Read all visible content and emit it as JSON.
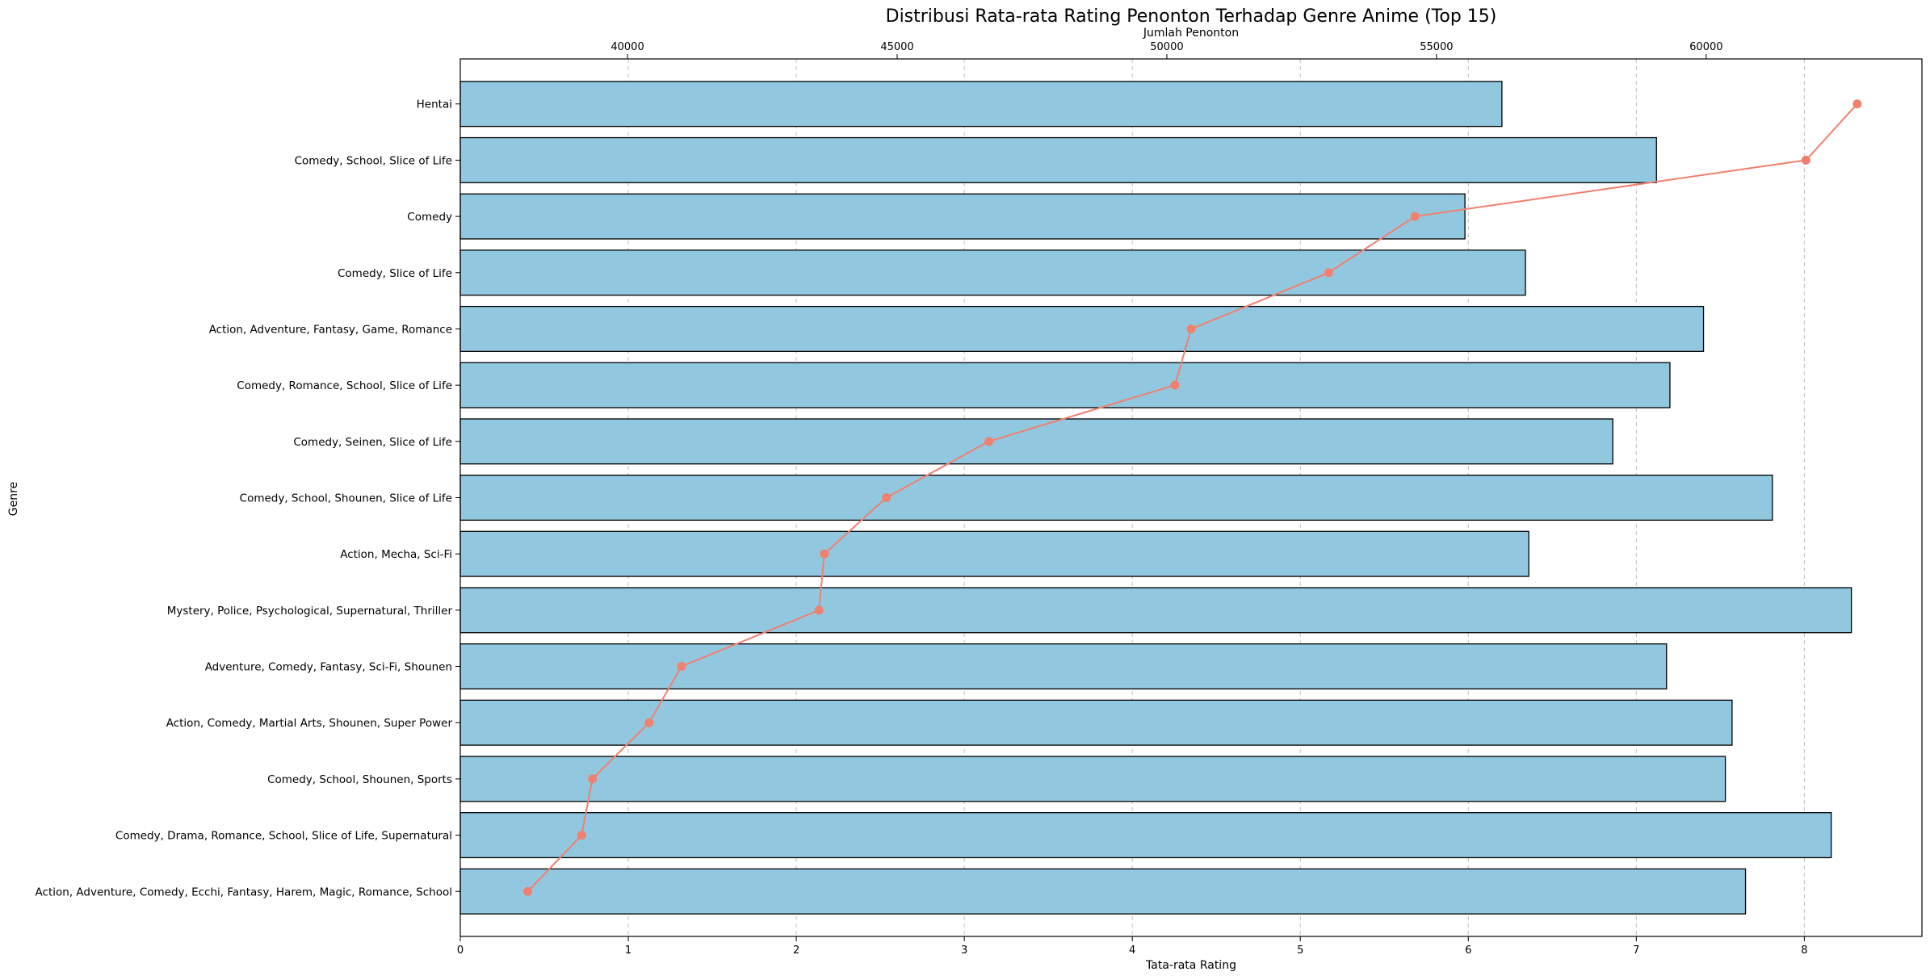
{
  "chart_data": {
    "type": "bar",
    "orientation": "horizontal",
    "title": "Distribusi Rata-rata Rating Penonton Terhadap Genre Anime (Top 15)",
    "xlabel": "Tata-rata Rating",
    "ylabel": "Genre",
    "x2label": "Jumlah Penonton",
    "xlim": [
      0,
      8.7
    ],
    "x2lim": [
      36900,
      64000
    ],
    "xticks": [
      0,
      1,
      2,
      3,
      4,
      5,
      6,
      7,
      8
    ],
    "x2ticks": [
      40000,
      45000,
      50000,
      55000,
      60000
    ],
    "grid": "vertical dashed on x",
    "categories": [
      "Hentai",
      "Comedy, School, Slice of Life",
      "Comedy",
      "Comedy, Slice of Life",
      "Action, Adventure, Fantasy, Game, Romance",
      "Comedy, Romance, School, Slice of Life",
      "Comedy, Seinen, Slice of Life",
      "Comedy, School, Shounen, Slice of Life",
      "Action, Mecha, Sci-Fi",
      "Mystery, Police, Psychological, Supernatural, Thriller",
      "Adventure, Comedy, Fantasy, Sci-Fi, Shounen",
      "Action, Comedy, Martial Arts, Shounen, Super Power",
      "Comedy, School, Shounen, Sports",
      "Comedy, Drama, Romance, School, Slice of Life, Supernatural",
      "Action, Adventure, Comedy, Ecchi, Fantasy, Harem, Magic, Romance, School"
    ],
    "series": [
      {
        "kind": "bar",
        "axis": "bottom",
        "color": "#92c8df",
        "values": [
          6.2,
          7.12,
          5.98,
          6.34,
          7.4,
          7.2,
          6.86,
          7.81,
          6.36,
          8.28,
          7.18,
          7.57,
          7.53,
          8.16,
          7.65
        ]
      },
      {
        "kind": "line",
        "axis": "top",
        "color": "#f08070",
        "values": [
          62800,
          61850,
          54600,
          53000,
          50450,
          50150,
          46700,
          44800,
          43650,
          43550,
          41000,
          40400,
          39350,
          39150,
          38150
        ]
      }
    ]
  }
}
